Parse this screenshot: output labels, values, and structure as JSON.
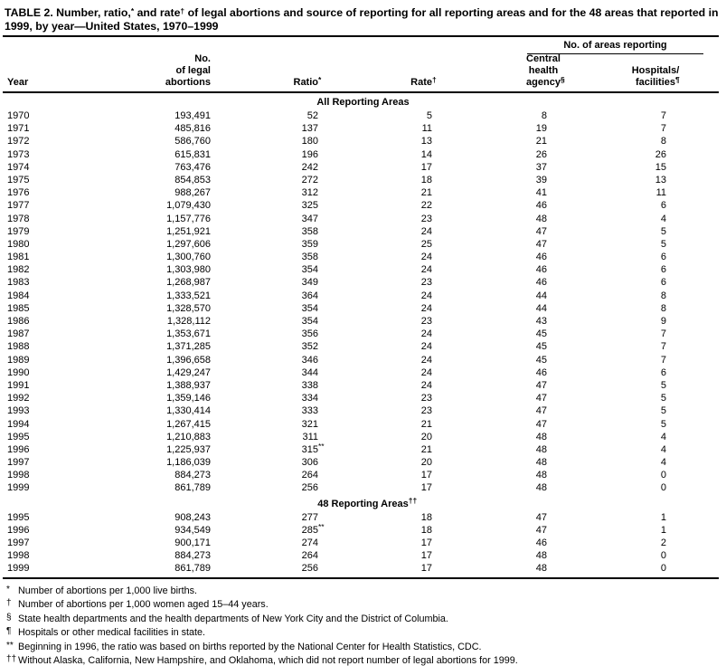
{
  "title": {
    "part1": "TABLE 2. Number, ratio,",
    "sup1": "*",
    "part2": " and rate",
    "sup2": "†",
    "part3": " of legal abortions and source of reporting for all reporting areas and for the 48 areas that reported in 1999, by year—United States, 1970–1999"
  },
  "header": {
    "spanner": "No. of areas reporting",
    "columns": {
      "year": {
        "label": "Year"
      },
      "abortions": {
        "lines": [
          "No.",
          "of legal",
          "abortions"
        ]
      },
      "ratio": {
        "label": "Ratio",
        "sup": "*"
      },
      "rate": {
        "label": "Rate",
        "sup": "†"
      },
      "agency": {
        "lines": [
          "Central",
          "health",
          "agency"
        ],
        "sup": "§"
      },
      "facilities": {
        "lines": [
          "Hospitals/",
          "facilities"
        ],
        "sup": "¶"
      }
    }
  },
  "sections": [
    {
      "label": "All Reporting Areas",
      "sup": "",
      "rows": [
        [
          "1970",
          "193,491",
          "52",
          "5",
          "8",
          "7"
        ],
        [
          "1971",
          "485,816",
          "137",
          "11",
          "19",
          "7"
        ],
        [
          "1972",
          "586,760",
          "180",
          "13",
          "21",
          "8"
        ],
        [
          "1973",
          "615,831",
          "196",
          "14",
          "26",
          "26"
        ],
        [
          "1974",
          "763,476",
          "242",
          "17",
          "37",
          "15"
        ],
        [
          "1975",
          "854,853",
          "272",
          "18",
          "39",
          "13"
        ],
        [
          "1976",
          "988,267",
          "312",
          "21",
          "41",
          "11"
        ],
        [
          "1977",
          "1,079,430",
          "325",
          "22",
          "46",
          "6"
        ],
        [
          "1978",
          "1,157,776",
          "347",
          "23",
          "48",
          "4"
        ],
        [
          "1979",
          "1,251,921",
          "358",
          "24",
          "47",
          "5"
        ],
        [
          "1980",
          "1,297,606",
          "359",
          "25",
          "47",
          "5"
        ],
        [
          "1981",
          "1,300,760",
          "358",
          "24",
          "46",
          "6"
        ],
        [
          "1982",
          "1,303,980",
          "354",
          "24",
          "46",
          "6"
        ],
        [
          "1983",
          "1,268,987",
          "349",
          "23",
          "46",
          "6"
        ],
        [
          "1984",
          "1,333,521",
          "364",
          "24",
          "44",
          "8"
        ],
        [
          "1985",
          "1,328,570",
          "354",
          "24",
          "44",
          "8"
        ],
        [
          "1986",
          "1,328,112",
          "354",
          "23",
          "43",
          "9"
        ],
        [
          "1987",
          "1,353,671",
          "356",
          "24",
          "45",
          "7"
        ],
        [
          "1988",
          "1,371,285",
          "352",
          "24",
          "45",
          "7"
        ],
        [
          "1989",
          "1,396,658",
          "346",
          "24",
          "45",
          "7"
        ],
        [
          "1990",
          "1,429,247",
          "344",
          "24",
          "46",
          "6"
        ],
        [
          "1991",
          "1,388,937",
          "338",
          "24",
          "47",
          "5"
        ],
        [
          "1992",
          "1,359,146",
          "334",
          "23",
          "47",
          "5"
        ],
        [
          "1993",
          "1,330,414",
          "333",
          "23",
          "47",
          "5"
        ],
        [
          "1994",
          "1,267,415",
          "321",
          "21",
          "47",
          "5"
        ],
        [
          "1995",
          "1,210,883",
          "311",
          "20",
          "48",
          "4"
        ],
        [
          "1996",
          "1,225,937",
          "315**",
          "21",
          "48",
          "4"
        ],
        [
          "1997",
          "1,186,039",
          "306",
          "20",
          "48",
          "4"
        ],
        [
          "1998",
          "884,273",
          "264",
          "17",
          "48",
          "0"
        ],
        [
          "1999",
          "861,789",
          "256",
          "17",
          "48",
          "0"
        ]
      ]
    },
    {
      "label": "48 Reporting Areas",
      "sup": "††",
      "rows": [
        [
          "1995",
          "908,243",
          "277",
          "18",
          "47",
          "1"
        ],
        [
          "1996",
          "934,549",
          "285**",
          "18",
          "47",
          "1"
        ],
        [
          "1997",
          "900,171",
          "274",
          "17",
          "46",
          "2"
        ],
        [
          "1998",
          "884,273",
          "264",
          "17",
          "48",
          "0"
        ],
        [
          "1999",
          "861,789",
          "256",
          "17",
          "48",
          "0"
        ]
      ]
    }
  ],
  "footnotes": [
    {
      "sym": "*",
      "text": "Number of abortions per 1,000 live births."
    },
    {
      "sym": "†",
      "text": "Number of abortions per 1,000 women aged 15–44 years."
    },
    {
      "sym": "§",
      "text": "State health departments and the health departments of New York City and the District of Columbia."
    },
    {
      "sym": "¶",
      "text": "Hospitals or other medical facilities in state."
    },
    {
      "sym": "**",
      "text": "Beginning in 1996, the ratio was based on births reported by the National Center for Health Statistics, CDC."
    },
    {
      "sym": "††",
      "text": "Without Alaska, California, New Hampshire, and Oklahoma, which did not report number of legal abortions for 1999."
    }
  ]
}
